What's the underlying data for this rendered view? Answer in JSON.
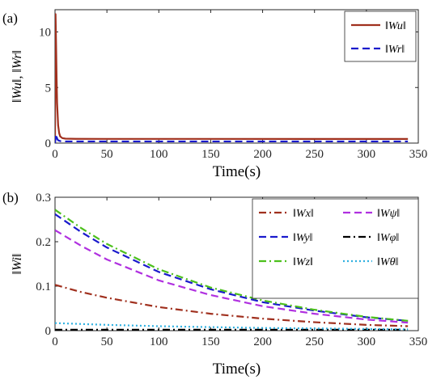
{
  "chart_data": [
    {
      "panel_label": "(a)",
      "type": "line",
      "xlabel": "Time(s)",
      "ylabel": "‖Wu‖, ‖Wr‖",
      "xlim": [
        0,
        350
      ],
      "ylim": [
        0,
        12
      ],
      "xticks": [
        "0",
        "50",
        "100",
        "150",
        "200",
        "250",
        "300",
        "350"
      ],
      "yticks": [
        "0",
        "5",
        "10"
      ],
      "ytick_values": [
        0,
        5,
        10
      ],
      "legend_position": "top-right",
      "series": [
        {
          "name": "‖Wu‖",
          "color": "#a0301e",
          "style": "solid",
          "x": [
            0,
            0.5,
            1,
            1.5,
            2,
            3,
            4,
            5,
            7,
            10,
            20,
            340
          ],
          "y": [
            0,
            11.6,
            9.0,
            6.0,
            3.6,
            1.6,
            0.9,
            0.6,
            0.45,
            0.4,
            0.38,
            0.37
          ]
        },
        {
          "name": "‖Wr‖",
          "color": "#1a1acc",
          "style": "dashed",
          "x": [
            0,
            1,
            2,
            3,
            5,
            10,
            340
          ],
          "y": [
            0.0,
            0.8,
            0.4,
            0.25,
            0.18,
            0.15,
            0.15
          ]
        }
      ]
    },
    {
      "panel_label": "(b)",
      "type": "line",
      "xlabel": "Time(s)",
      "ylabel": "‖Wi‖",
      "xlim": [
        0,
        350
      ],
      "ylim": [
        0,
        0.3
      ],
      "xticks": [
        "0",
        "50",
        "100",
        "150",
        "200",
        "250",
        "300",
        "350"
      ],
      "yticks": [
        "0",
        "0.1",
        "0.2",
        "0.3"
      ],
      "ytick_values": [
        0,
        0.1,
        0.2,
        0.3
      ],
      "legend_position": "top-right",
      "series": [
        {
          "name": "‖Wx‖",
          "color": "#a0301e",
          "style": "dashdot",
          "x": [
            0,
            25,
            50,
            100,
            150,
            200,
            250,
            300,
            340
          ],
          "y": [
            0.103,
            0.087,
            0.074,
            0.053,
            0.038,
            0.027,
            0.019,
            0.013,
            0.01
          ]
        },
        {
          "name": "‖Wy‖",
          "color": "#1a1acc",
          "style": "dashed",
          "x": [
            0,
            25,
            50,
            100,
            150,
            200,
            250,
            300,
            340
          ],
          "y": [
            0.262,
            0.222,
            0.187,
            0.132,
            0.093,
            0.064,
            0.045,
            0.03,
            0.022
          ]
        },
        {
          "name": "‖Wz‖",
          "color": "#4cc01c",
          "style": "dashdot",
          "x": [
            0,
            25,
            50,
            100,
            150,
            200,
            250,
            300,
            340
          ],
          "y": [
            0.272,
            0.231,
            0.195,
            0.138,
            0.097,
            0.068,
            0.047,
            0.031,
            0.022
          ]
        },
        {
          "name": "‖Wψ‖",
          "color": "#b030e0",
          "style": "dashed",
          "x": [
            0,
            25,
            50,
            100,
            150,
            200,
            250,
            300,
            340
          ],
          "y": [
            0.226,
            0.191,
            0.16,
            0.113,
            0.08,
            0.055,
            0.038,
            0.025,
            0.018
          ]
        },
        {
          "name": "‖Wφ‖",
          "color": "#000000",
          "style": "dashdot",
          "x": [
            0,
            100,
            200,
            340
          ],
          "y": [
            0.002,
            0.002,
            0.002,
            0.002
          ]
        },
        {
          "name": "‖Wθ‖",
          "color": "#30b0e0",
          "style": "dotted",
          "x": [
            0,
            50,
            100,
            200,
            340
          ],
          "y": [
            0.017,
            0.013,
            0.01,
            0.006,
            0.003
          ]
        }
      ]
    }
  ]
}
